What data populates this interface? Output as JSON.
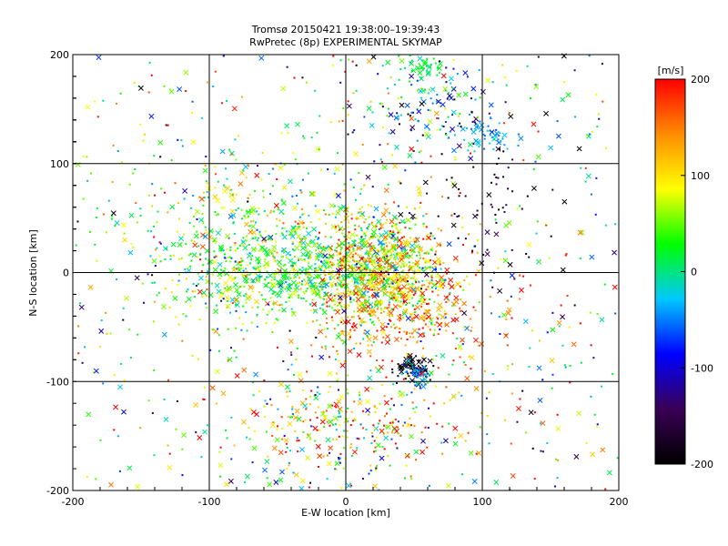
{
  "chart_data": {
    "type": "scatter",
    "title": "Tromsø 20150421 19:38:00–19:39:43",
    "subtitle": "RwPretec (8p) EXPERIMENTAL SKYMAP",
    "xlabel": "E-W location [km]",
    "ylabel": "N-S location [km]",
    "xlim": [
      -200,
      200
    ],
    "ylim": [
      -200,
      200
    ],
    "xticks": [
      -200,
      -100,
      0,
      100,
      200
    ],
    "yticks": [
      -200,
      -100,
      0,
      100,
      200
    ],
    "grid": true,
    "colorbar": {
      "label": "[m/s]",
      "range": [
        -200,
        200
      ],
      "ticks": [
        200,
        100,
        0,
        -100,
        -200
      ],
      "colormap": [
        "#000000",
        "#3a0055",
        "#0000ff",
        "#00c8ff",
        "#00ff00",
        "#ffff00",
        "#ff8c00",
        "#ff0000"
      ]
    },
    "marker_types": [
      "cross",
      "dot"
    ],
    "series": [
      {
        "clusters": [
          {
            "x": 25,
            "y": 5,
            "sx": 25,
            "sy": 28,
            "n": 900,
            "vmean": 80,
            "vsd": 70
          },
          {
            "x": -40,
            "y": 0,
            "sx": 40,
            "sy": 20,
            "n": 500,
            "vmean": 30,
            "vsd": 45
          },
          {
            "x": 45,
            "y": -35,
            "sx": 35,
            "sy": 25,
            "n": 300,
            "vmean": 140,
            "vsd": 50
          },
          {
            "x": 50,
            "y": -88,
            "sx": 7,
            "sy": 6,
            "n": 70,
            "vmean": -190,
            "vsd": 15
          },
          {
            "x": 52,
            "y": -93,
            "sx": 5,
            "sy": 5,
            "n": 40,
            "vmean": -40,
            "vsd": 30
          },
          {
            "x": 0,
            "y": -140,
            "sx": 45,
            "sy": 25,
            "n": 320,
            "vmean": 90,
            "vsd": 100
          },
          {
            "x": 65,
            "y": 155,
            "sx": 25,
            "sy": 25,
            "n": 150,
            "vmean": -30,
            "vsd": 80
          },
          {
            "x": 55,
            "y": 190,
            "sx": 7,
            "sy": 5,
            "n": 40,
            "vmean": 15,
            "vsd": 10
          },
          {
            "x": 105,
            "y": 125,
            "sx": 10,
            "sy": 8,
            "n": 50,
            "vmean": -40,
            "vsd": 20
          },
          {
            "x": 100,
            "y": 60,
            "sx": 25,
            "sy": 40,
            "n": 70,
            "vmean": -180,
            "vsd": 30
          },
          {
            "x": -70,
            "y": 30,
            "sx": 45,
            "sy": 45,
            "n": 450,
            "vmean": 50,
            "vsd": 60
          },
          {
            "x": 0,
            "y": 0,
            "sx": 200,
            "sy": 200,
            "n": 600,
            "vmean": 20,
            "vsd": 110
          }
        ]
      }
    ]
  }
}
